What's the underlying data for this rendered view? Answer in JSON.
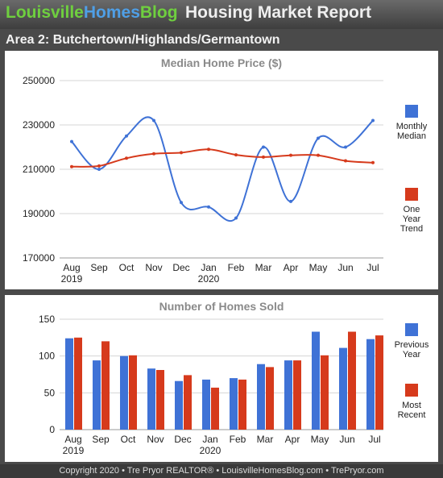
{
  "header": {
    "brand_part1": "Louisville",
    "brand_part2": "Homes",
    "brand_part3": "Blog",
    "report_title": "Housing Market Report"
  },
  "area_title": "Area 2: Butchertown/Highlands/Germantown",
  "chart_data": [
    {
      "type": "line",
      "title": "Median Home Price ($)",
      "categories": [
        "Aug",
        "Sep",
        "Oct",
        "Nov",
        "Dec",
        "Jan",
        "Feb",
        "Mar",
        "Apr",
        "May",
        "Jun",
        "Jul"
      ],
      "year_labels": [
        "2019",
        "",
        "",
        "",
        "",
        "2020",
        "",
        "",
        "",
        "",
        "",
        ""
      ],
      "y_ticks": [
        "250000",
        "230000",
        "210000",
        "190000",
        "170000"
      ],
      "ylim": [
        170000,
        250000
      ],
      "grid": true,
      "legend_position": "right",
      "series": [
        {
          "name": "Monthly Median",
          "color": "#3f72d6",
          "values": [
            222500,
            210000,
            225000,
            232000,
            195000,
            193000,
            188000,
            220000,
            195500,
            224000,
            220000,
            232000
          ]
        },
        {
          "name": "One Year Trend",
          "color": "#d63a1c",
          "values": [
            211200,
            211500,
            215000,
            217000,
            217500,
            219000,
            216500,
            215500,
            216300,
            216300,
            213800,
            213000
          ]
        }
      ],
      "legend_labels": [
        [
          "Monthly",
          "Median"
        ],
        [
          "One",
          "Year",
          "Trend"
        ]
      ]
    },
    {
      "type": "bar",
      "title": "Number of Homes Sold",
      "categories": [
        "Aug",
        "Sep",
        "Oct",
        "Nov",
        "Dec",
        "Jan",
        "Feb",
        "Mar",
        "Apr",
        "May",
        "Jun",
        "Jul"
      ],
      "year_labels": [
        "2019",
        "",
        "",
        "",
        "",
        "2020",
        "",
        "",
        "",
        "",
        "",
        ""
      ],
      "y_ticks": [
        "150",
        "100",
        "50",
        "0"
      ],
      "ylim": [
        0,
        150
      ],
      "grid": true,
      "legend_position": "right",
      "series": [
        {
          "name": "Previous Year",
          "color": "#3f72d6",
          "values": [
            124,
            94,
            100,
            83,
            66,
            68,
            70,
            89,
            94,
            133,
            111,
            123
          ]
        },
        {
          "name": "Most Recent",
          "color": "#d63a1c",
          "values": [
            125,
            120,
            101,
            81,
            74,
            57,
            68,
            85,
            94,
            101,
            133,
            128
          ]
        }
      ],
      "legend_labels": [
        [
          "Previous",
          "Year"
        ],
        [
          "Most",
          "Recent"
        ]
      ]
    }
  ],
  "footer": "Copyright 2020 • Tre Pryor REALTOR® • LouisvilleHomesBlog.com • TrePryor.com"
}
